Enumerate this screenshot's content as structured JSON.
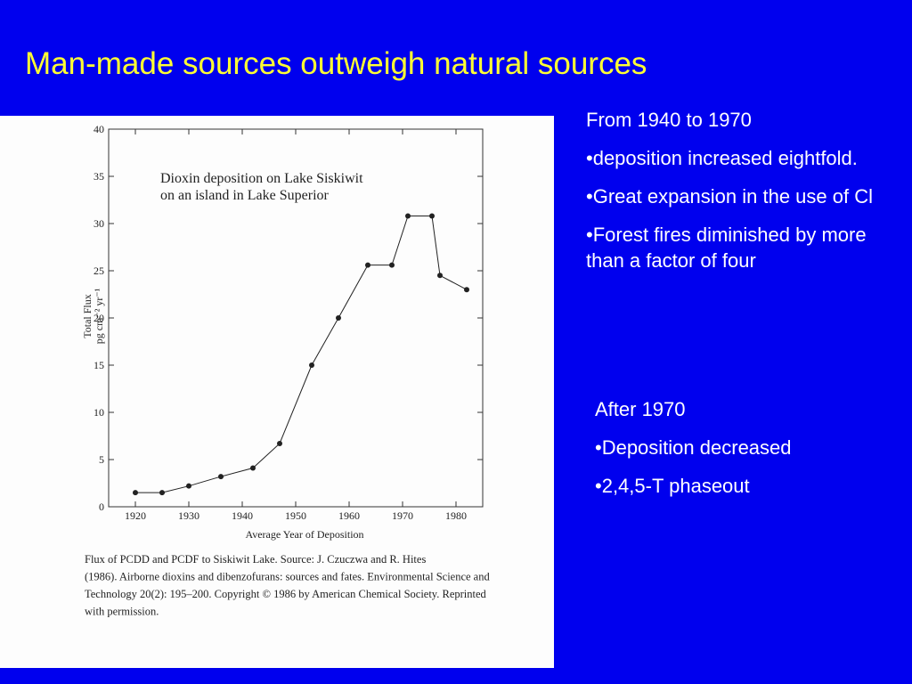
{
  "slide_title": "Man-made sources outweigh natural sources",
  "text_blocks": [
    {
      "heading": "From 1940 to 1970",
      "bullets": [
        "•deposition increased eightfold.",
        "•Great expansion in the use of Cl",
        "•Forest fires diminished by more than a factor of four"
      ]
    },
    {
      "heading": "After 1970",
      "bullets": [
        "•Deposition decreased",
        "•2,4,5-T phaseout"
      ]
    }
  ],
  "chart_data": {
    "type": "line",
    "annotation": [
      "Dioxin deposition on Lake Siskiwit",
      "on an island in Lake Superior"
    ],
    "y_label": [
      "Total Flux",
      "pg cm⁻² yr⁻¹"
    ],
    "x_label": "Average Year of Deposition",
    "x": [
      1920,
      1925,
      1930,
      1936,
      1942,
      1947,
      1953,
      1958,
      1963.5,
      1968,
      1971,
      1975.5,
      1977,
      1982
    ],
    "series": [
      {
        "name": "Total Flux",
        "color": "#222222",
        "values": [
          1.5,
          1.5,
          2.2,
          3.2,
          4.1,
          6.7,
          15,
          20,
          25.6,
          25.6,
          30.8,
          30.8,
          24.5,
          23
        ]
      }
    ],
    "xlim": [
      1915,
      1985
    ],
    "xticks": [
      1920,
      1930,
      1940,
      1950,
      1960,
      1970,
      1980
    ],
    "ylim": [
      0,
      40
    ],
    "yticks": [
      0,
      5,
      10,
      15,
      20,
      25,
      30,
      35,
      40
    ],
    "caption": [
      "Flux of PCDD and PCDF to Siskiwit Lake.  Source: J. Czuczwa and R. Hites",
      "(1986). Airborne dioxins and dibenzofurans: sources and fates. Environmental Science and",
      "Technology 20(2): 195–200. Copyright © 1986 by American Chemical Society. Reprinted",
      "with permission."
    ]
  }
}
